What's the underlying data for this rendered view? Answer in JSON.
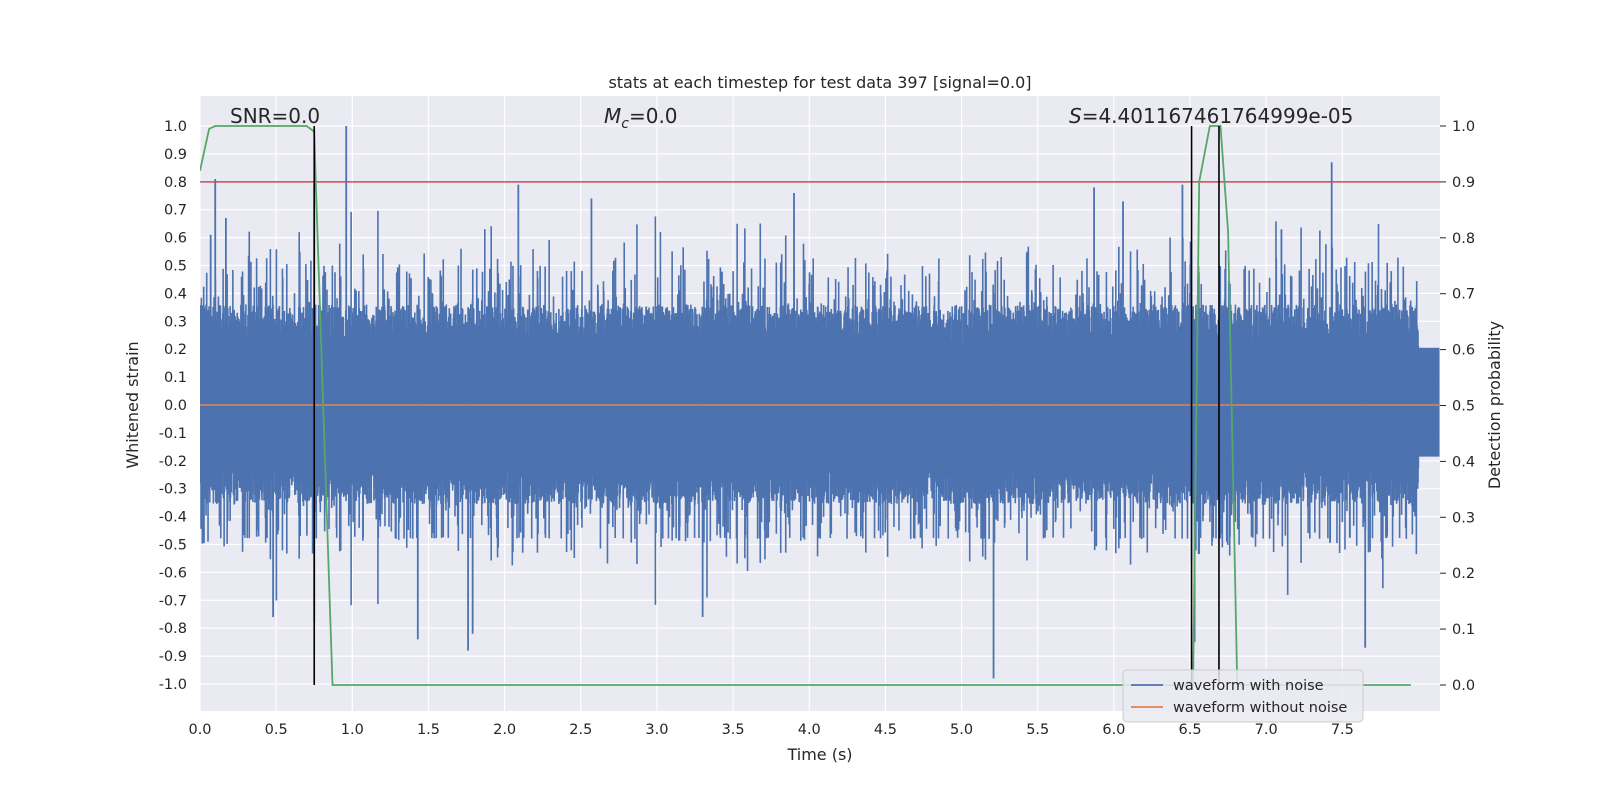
{
  "chart_data": {
    "type": "line",
    "title": "stats at each timestep for test data 397 [signal=0.0]",
    "xlabel": "Time (s)",
    "ylabel_left": "Whitened strain",
    "ylabel_right": "Detection probability",
    "xlim": [
      0.0,
      8.0
    ],
    "ylim_left": [
      -1.08,
      1.1
    ],
    "ylim_right": [
      -0.04,
      1.04
    ],
    "grid": true,
    "legend_position": "lower-right",
    "xticks": [
      "0.0",
      "0.5",
      "1.0",
      "1.5",
      "2.0",
      "2.5",
      "3.0",
      "3.5",
      "4.0",
      "4.5",
      "5.0",
      "5.5",
      "6.0",
      "6.5",
      "7.0",
      "7.5"
    ],
    "xtick_values": [
      0.0,
      0.5,
      1.0,
      1.5,
      2.0,
      2.5,
      3.0,
      3.5,
      4.0,
      4.5,
      5.0,
      5.5,
      6.0,
      6.5,
      7.0,
      7.5
    ],
    "yticks_left": [
      "1.0",
      "0.9",
      "0.8",
      "0.7",
      "0.6",
      "0.5",
      "0.4",
      "0.3",
      "0.2",
      "0.1",
      "0.0",
      "-0.1",
      "-0.2",
      "-0.3",
      "-0.4",
      "-0.5",
      "-0.6",
      "-0.7",
      "-0.8",
      "-0.9",
      "-1.0"
    ],
    "ytick_values_left": [
      1.0,
      0.9,
      0.8,
      0.7,
      0.6,
      0.5,
      0.4,
      0.3,
      0.2,
      0.1,
      0.0,
      -0.1,
      -0.2,
      -0.3,
      -0.4,
      -0.5,
      -0.6,
      -0.7,
      -0.8,
      -0.9,
      -1.0
    ],
    "yticks_right": [
      "1.0",
      "0.9",
      "0.8",
      "0.7",
      "0.6",
      "0.5",
      "0.4",
      "0.3",
      "0.2",
      "0.1",
      "0.0"
    ],
    "ytick_values_right": [
      1.0,
      0.9,
      0.8,
      0.7,
      0.6,
      0.5,
      0.4,
      0.3,
      0.2,
      0.1,
      0.0
    ],
    "annotations": {
      "snr": "SNR=0.0",
      "mc_symbol": "M",
      "mc_subscript": "c",
      "mc_value": "=0.0",
      "s_symbol": "S",
      "s_value": "=4.401167461764999e-05"
    },
    "threshold": {
      "axis": "right",
      "value": 0.9,
      "color": "#c44e52"
    },
    "vertical_markers": {
      "x": [
        0.75,
        6.51,
        6.69
      ],
      "ymin_right": 0.0,
      "ymax_right": 1.0,
      "color": "#000000"
    },
    "series": [
      {
        "name": "waveform with noise",
        "axis": "left",
        "color": "#4c72b0",
        "kind": "noise",
        "spikes": [
          {
            "t": 0.07,
            "v": 0.61
          },
          {
            "t": 0.1,
            "v": 0.81
          },
          {
            "t": 0.17,
            "v": 0.67
          },
          {
            "t": 0.75,
            "v": 0.79
          },
          {
            "t": 0.75,
            "v": -0.78
          },
          {
            "t": 0.96,
            "v": 1.0
          },
          {
            "t": 1.43,
            "v": -0.84
          },
          {
            "t": 1.76,
            "v": -0.88
          },
          {
            "t": 1.79,
            "v": -0.82
          },
          {
            "t": 2.09,
            "v": 0.79
          },
          {
            "t": 3.9,
            "v": 0.76
          },
          {
            "t": 5.21,
            "v": -0.98
          },
          {
            "t": 5.87,
            "v": 0.78
          },
          {
            "t": 6.45,
            "v": 0.79
          },
          {
            "t": 6.53,
            "v": -0.85
          },
          {
            "t": 7.43,
            "v": 0.87
          },
          {
            "t": 7.65,
            "v": -0.87
          },
          {
            "t": 7.1,
            "v": 0.63
          },
          {
            "t": 6.06,
            "v": 0.73
          },
          {
            "t": 2.57,
            "v": 0.74
          },
          {
            "t": 0.48,
            "v": -0.76
          },
          {
            "t": 3.3,
            "v": -0.76
          }
        ]
      },
      {
        "name": "waveform without noise",
        "axis": "left",
        "color": "#dd8452",
        "x": [
          0.0,
          8.0
        ],
        "values": [
          0.0,
          0.0
        ]
      },
      {
        "name": "detection probability",
        "axis": "right",
        "color": "#55a868",
        "x": [
          0.0,
          0.06,
          0.1,
          0.2,
          0.7,
          0.75,
          0.76,
          0.87,
          6.5,
          6.52,
          6.56,
          6.63,
          6.67,
          6.7,
          6.75,
          6.81,
          7.95
        ],
        "values": [
          0.92,
          0.995,
          1.0,
          1.0,
          1.0,
          0.99,
          0.9,
          0.0,
          0.0,
          0.0,
          0.9,
          1.0,
          1.0,
          1.0,
          0.81,
          0.0,
          0.0
        ]
      }
    ],
    "legend": [
      {
        "label": "waveform with noise",
        "color": "#4c72b0"
      },
      {
        "label": "waveform without noise",
        "color": "#dd8452"
      }
    ]
  }
}
